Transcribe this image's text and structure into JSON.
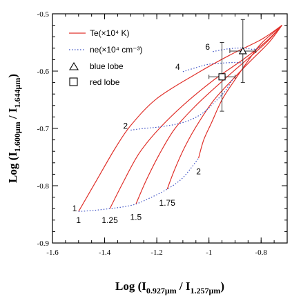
{
  "chart_data": {
    "type": "line",
    "xlabel_parts": [
      "Log (I",
      "0.927μm",
      " / I",
      "1.257μm",
      ")"
    ],
    "ylabel_parts": [
      "Log (I",
      "1.600μm",
      " / I",
      "1.644μm",
      ")"
    ],
    "xlim": [
      -1.6,
      -0.7
    ],
    "ylim": [
      -0.9,
      -0.5
    ],
    "xticks": [
      -1.6,
      -1.4,
      -1.2,
      -1.0,
      -0.8
    ],
    "xtick_labels": [
      "-1.6",
      "-1.4",
      "-1.2",
      "-1",
      "-0.8"
    ],
    "yticks": [
      -0.9,
      -0.8,
      -0.7,
      -0.6,
      -0.5
    ],
    "ytick_labels": [
      "-0.9",
      "-0.8",
      "-0.7",
      "-0.6",
      "-0.5"
    ],
    "grid": false,
    "legend": {
      "position": "top-left",
      "entries": [
        {
          "label": "Te(×10⁴ K)",
          "style": "solid",
          "color": "#e0302a"
        },
        {
          "label": "ne(×10⁴ cm⁻³)",
          "style": "dotted",
          "color": "#3a4fc4"
        },
        {
          "label": "blue lobe",
          "marker": "triangle"
        },
        {
          "label": "red lobe",
          "marker": "square"
        }
      ]
    },
    "series": [
      {
        "group": "Te",
        "label": "1",
        "points": [
          [
            -1.5,
            -0.845
          ],
          [
            -1.43,
            -0.79
          ],
          [
            -1.36,
            -0.735
          ],
          [
            -1.3,
            -0.695
          ],
          [
            -1.2,
            -0.648
          ],
          [
            -1.05,
            -0.605
          ],
          [
            -0.92,
            -0.572
          ],
          [
            -0.8,
            -0.545
          ],
          [
            -0.72,
            -0.52
          ]
        ]
      },
      {
        "group": "Te",
        "label": "1.25",
        "points": [
          [
            -1.38,
            -0.84
          ],
          [
            -1.33,
            -0.795
          ],
          [
            -1.27,
            -0.745
          ],
          [
            -1.2,
            -0.705
          ],
          [
            -1.1,
            -0.66
          ],
          [
            -0.98,
            -0.615
          ],
          [
            -0.87,
            -0.58
          ],
          [
            -0.78,
            -0.548
          ],
          [
            -0.72,
            -0.52
          ]
        ]
      },
      {
        "group": "Te",
        "label": "1.5",
        "points": [
          [
            -1.28,
            -0.832
          ],
          [
            -1.24,
            -0.79
          ],
          [
            -1.19,
            -0.745
          ],
          [
            -1.13,
            -0.7
          ],
          [
            -1.05,
            -0.66
          ],
          [
            -0.96,
            -0.622
          ],
          [
            -0.87,
            -0.586
          ],
          [
            -0.78,
            -0.55
          ],
          [
            -0.72,
            -0.52
          ]
        ]
      },
      {
        "group": "Te",
        "label": "1.75",
        "points": [
          [
            -1.16,
            -0.806
          ],
          [
            -1.13,
            -0.77
          ],
          [
            -1.09,
            -0.73
          ],
          [
            -1.04,
            -0.69
          ],
          [
            -0.98,
            -0.65
          ],
          [
            -0.91,
            -0.615
          ],
          [
            -0.84,
            -0.582
          ],
          [
            -0.77,
            -0.55
          ],
          [
            -0.72,
            -0.52
          ]
        ]
      },
      {
        "group": "Te",
        "label": "2",
        "points": [
          [
            -1.04,
            -0.752
          ],
          [
            -1.02,
            -0.72
          ],
          [
            -0.99,
            -0.69
          ],
          [
            -0.95,
            -0.65
          ],
          [
            -0.9,
            -0.615
          ],
          [
            -0.85,
            -0.582
          ],
          [
            -0.8,
            -0.552
          ],
          [
            -0.72,
            -0.52
          ]
        ]
      },
      {
        "group": "ne",
        "label": "1",
        "points": [
          [
            -1.5,
            -0.845
          ],
          [
            -1.44,
            -0.843
          ],
          [
            -1.38,
            -0.84
          ],
          [
            -1.33,
            -0.837
          ],
          [
            -1.28,
            -0.832
          ],
          [
            -1.22,
            -0.82
          ],
          [
            -1.16,
            -0.806
          ],
          [
            -1.1,
            -0.786
          ],
          [
            -1.04,
            -0.752
          ]
        ]
      },
      {
        "group": "ne",
        "label": "2",
        "points": [
          [
            -1.3,
            -0.703
          ],
          [
            -1.25,
            -0.7
          ],
          [
            -1.2,
            -0.698
          ],
          [
            -1.13,
            -0.693
          ],
          [
            -1.07,
            -0.685
          ],
          [
            -1.02,
            -0.672
          ],
          [
            -0.98,
            -0.655
          ],
          [
            -0.94,
            -0.636
          ],
          [
            -0.91,
            -0.615
          ]
        ]
      },
      {
        "group": "ne",
        "label": "4",
        "points": [
          [
            -1.1,
            -0.601
          ],
          [
            -1.05,
            -0.594
          ],
          [
            -1.0,
            -0.588
          ],
          [
            -0.95,
            -0.586
          ],
          [
            -0.9,
            -0.585
          ],
          [
            -0.87,
            -0.586
          ]
        ]
      },
      {
        "group": "ne",
        "label": "6",
        "points": [
          [
            -0.985,
            -0.566
          ],
          [
            -0.94,
            -0.562
          ],
          [
            -0.9,
            -0.56
          ],
          [
            -0.86,
            -0.56
          ],
          [
            -0.83,
            -0.562
          ],
          [
            -0.805,
            -0.558
          ]
        ]
      }
    ],
    "te_labels": [
      {
        "text": "1",
        "x": -1.5,
        "y": -0.86
      },
      {
        "text": "1.25",
        "x": -1.38,
        "y": -0.86
      },
      {
        "text": "1.5",
        "x": -1.28,
        "y": -0.855
      },
      {
        "text": "1.75",
        "x": -1.16,
        "y": -0.83
      },
      {
        "text": "2",
        "x": -1.04,
        "y": -0.775
      }
    ],
    "ne_labels": [
      {
        "text": "1",
        "x": -1.515,
        "y": -0.84
      },
      {
        "text": "2",
        "x": -1.32,
        "y": -0.696
      },
      {
        "text": "4",
        "x": -1.12,
        "y": -0.593
      },
      {
        "text": "6",
        "x": -1.005,
        "y": -0.558
      }
    ],
    "observations": [
      {
        "name": "blue lobe",
        "marker": "triangle",
        "x": -0.87,
        "y": -0.565,
        "xerr": 0.05,
        "yerr": 0.055
      },
      {
        "name": "red lobe",
        "marker": "square",
        "x": -0.95,
        "y": -0.61,
        "xerr": 0.05,
        "yerr": 0.06
      }
    ]
  }
}
